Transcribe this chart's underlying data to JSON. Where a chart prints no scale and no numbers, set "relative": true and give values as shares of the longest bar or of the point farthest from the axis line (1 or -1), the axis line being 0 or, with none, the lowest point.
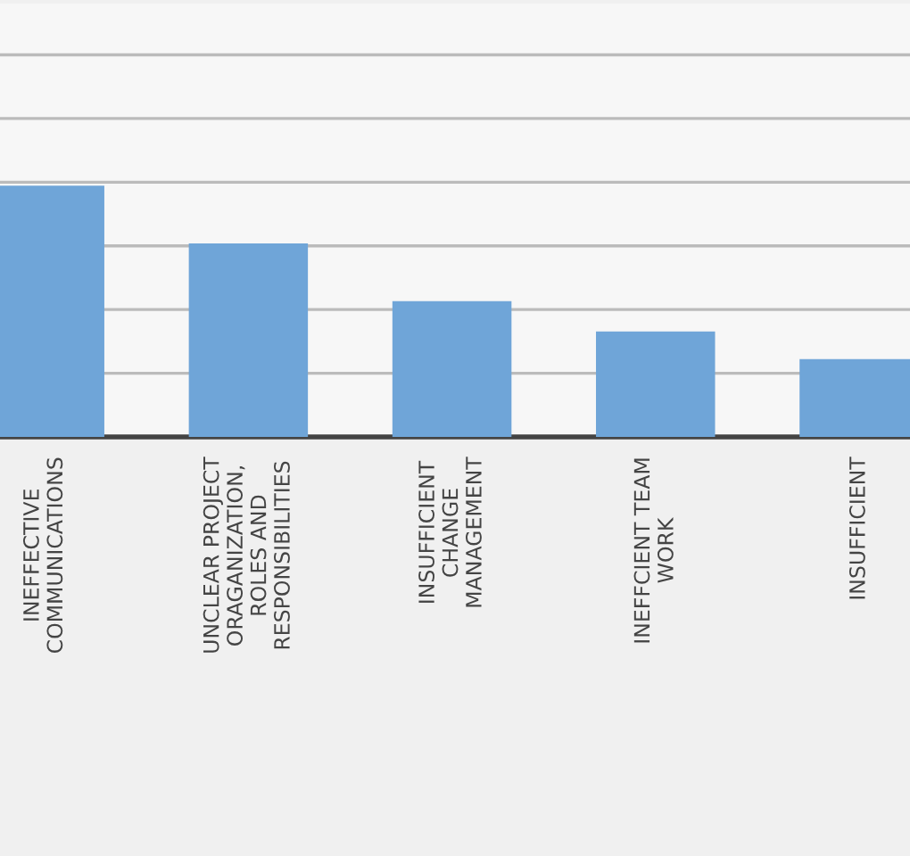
{
  "chart_data": {
    "type": "bar",
    "relative": true,
    "grid": "y",
    "categories": [
      "INEFFECTIVE\nCOMMUNICATIONS",
      "UNCLEAR PROJECT\nORAGANIZATION,\nROLES AND\nRESPONSIBILITIES",
      "INSUFFICIENT\nCHANGE\nMANAGEMENT",
      "INEFFCIENT TEAM\nWORK",
      "INSUFFICIENT"
    ],
    "values": [
      1,
      0.77,
      0.54,
      0.42,
      0.31
    ],
    "color": "#6fa5d8"
  }
}
